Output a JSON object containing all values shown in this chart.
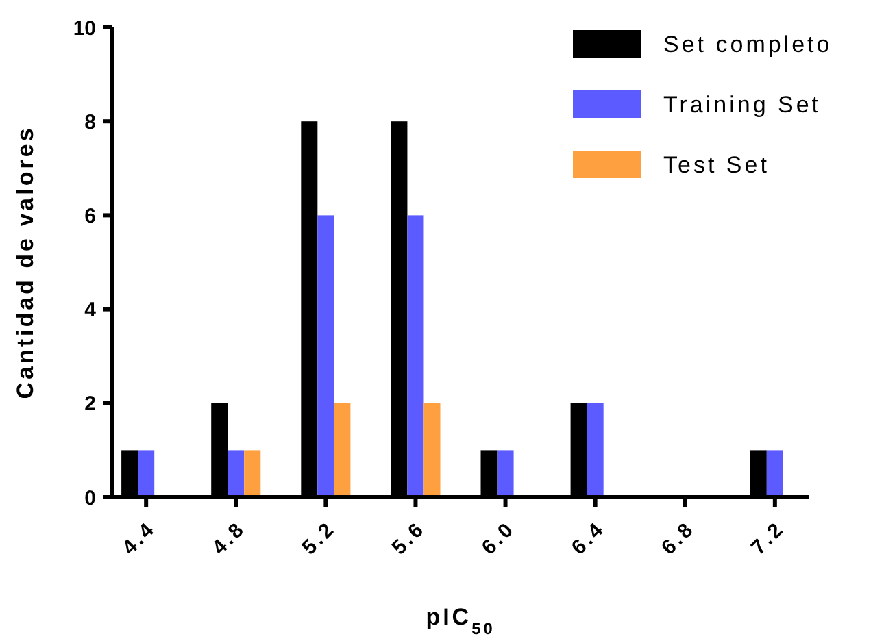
{
  "chart_data": {
    "type": "bar",
    "xlabel": "pIC$_{50}$",
    "ylabel": "Cantidad de valores",
    "categories": [
      "4.4",
      "4.8",
      "5.2",
      "5.6",
      "6.0",
      "6.4",
      "6.8",
      "7.2"
    ],
    "series": [
      {
        "name": "Set completo",
        "color": "#000000",
        "values": [
          1,
          2,
          8,
          8,
          1,
          2,
          0,
          1
        ]
      },
      {
        "name": "Training Set",
        "color": "#5b5bff",
        "values": [
          1,
          1,
          6,
          6,
          1,
          2,
          0,
          1
        ]
      },
      {
        "name": "Test Set",
        "color": "#ffa040",
        "values": [
          0,
          1,
          2,
          2,
          0,
          0,
          0,
          0
        ]
      }
    ],
    "ylim": [
      0,
      10
    ],
    "yticks": [
      0,
      2,
      4,
      6,
      8,
      10
    ],
    "grid": false,
    "legend": "top right"
  }
}
